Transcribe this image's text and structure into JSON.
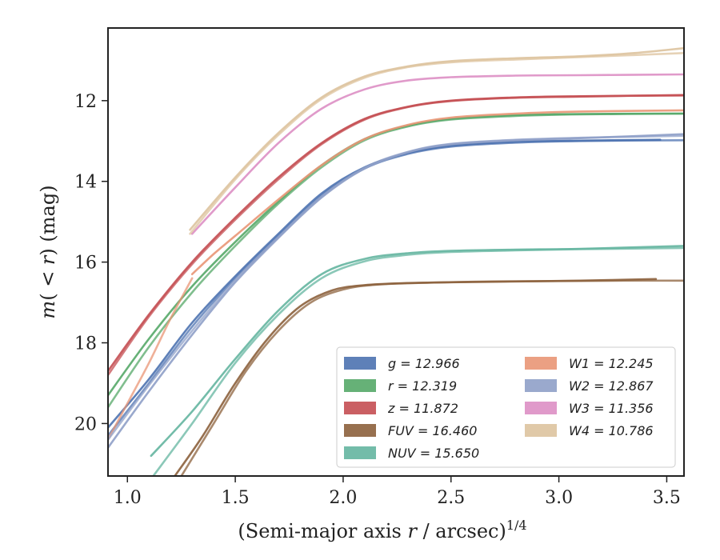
{
  "chart_data": {
    "type": "line",
    "xlabel_main": "(Semi-major axis ",
    "xlabel_var": "r",
    "xlabel_tail": " / arcsec)",
    "xlabel_sup": "1/4",
    "ylabel_pre": "m",
    "ylabel_mid": "( < ",
    "ylabel_var": "r",
    "ylabel_post": ") (mag)",
    "xlim": [
      0.91,
      3.58
    ],
    "ylim": [
      21.3,
      10.2
    ],
    "y_inverted": true,
    "x_ticks": [
      1.0,
      1.5,
      2.0,
      2.5,
      3.0,
      3.5
    ],
    "x_tick_labels": [
      "1.0",
      "1.5",
      "2.0",
      "2.5",
      "3.0",
      "3.5"
    ],
    "y_ticks": [
      12,
      14,
      16,
      18,
      20
    ],
    "y_tick_labels": [
      "12",
      "14",
      "16",
      "18",
      "20"
    ],
    "grid": false,
    "legend_position": "lower-right",
    "series": [
      {
        "band": "g",
        "value": "12.966",
        "color": "#4c72b0",
        "curves": [
          {
            "x": [
              0.91,
              1.1,
              1.3,
              1.5,
              1.7,
              1.9,
              2.1,
              2.3,
              2.5,
              2.8,
              3.1,
              3.47
            ],
            "y": [
              20.1,
              18.9,
              17.5,
              16.35,
              15.3,
              14.3,
              13.65,
              13.3,
              13.12,
              13.02,
              12.99,
              12.97
            ]
          },
          {
            "x": [
              0.91,
              1.1,
              1.3,
              1.5,
              1.7,
              1.9,
              2.1,
              2.3,
              2.5,
              2.8,
              3.1,
              3.58
            ],
            "y": [
              20.3,
              19.0,
              17.6,
              16.4,
              15.35,
              14.35,
              13.68,
              13.32,
              13.14,
              13.04,
              13.0,
              12.98
            ]
          }
        ]
      },
      {
        "band": "r",
        "value": "12.319",
        "color": "#55a868",
        "curves": [
          {
            "x": [
              0.91,
              1.1,
              1.3,
              1.5,
              1.7,
              1.9,
              2.1,
              2.3,
              2.5,
              2.8,
              3.1,
              3.58
            ],
            "y": [
              19.3,
              17.9,
              16.6,
              15.5,
              14.5,
              13.6,
              12.95,
              12.62,
              12.45,
              12.36,
              12.33,
              12.32
            ]
          },
          {
            "x": [
              0.91,
              1.1,
              1.3,
              1.5,
              1.7,
              1.9,
              2.1,
              2.3,
              2.5,
              2.8,
              3.1,
              3.58
            ],
            "y": [
              19.6,
              18.1,
              16.75,
              15.6,
              14.55,
              13.65,
              12.98,
              12.64,
              12.47,
              12.38,
              12.34,
              12.32
            ]
          }
        ]
      },
      {
        "band": "z",
        "value": "11.872",
        "color": "#c44e52",
        "curves": [
          {
            "x": [
              0.91,
              1.1,
              1.3,
              1.5,
              1.7,
              1.9,
              2.1,
              2.3,
              2.5,
              2.8,
              3.1,
              3.58
            ],
            "y": [
              18.7,
              17.3,
              16.0,
              14.9,
              13.9,
              13.05,
              12.45,
              12.15,
              12.0,
              11.92,
              11.89,
              11.87
            ]
          },
          {
            "x": [
              0.91,
              1.1,
              1.3,
              1.5,
              1.7,
              1.9,
              2.1,
              2.3,
              2.5,
              2.8,
              3.1,
              3.58
            ],
            "y": [
              18.8,
              17.35,
              16.05,
              14.95,
              13.95,
              13.08,
              12.47,
              12.16,
              12.01,
              11.93,
              11.9,
              11.86
            ]
          }
        ]
      },
      {
        "band": "FUV",
        "value": "16.460",
        "color": "#8c613c",
        "curves": [
          {
            "x": [
              1.22,
              1.35,
              1.5,
              1.65,
              1.8,
              1.95,
              2.1,
              2.3,
              2.5,
              2.8,
              3.1,
              3.45
            ],
            "y": [
              21.3,
              20.3,
              19.0,
              17.9,
              17.1,
              16.7,
              16.57,
              16.52,
              16.5,
              16.48,
              16.46,
              16.42
            ]
          },
          {
            "x": [
              1.25,
              1.4,
              1.55,
              1.7,
              1.85,
              2.0,
              2.15,
              2.4,
              2.7,
              3.0,
              3.3,
              3.58
            ],
            "y": [
              21.3,
              20.0,
              18.7,
              17.7,
              17.0,
              16.68,
              16.56,
              16.51,
              16.48,
              16.47,
              16.46,
              16.46
            ]
          }
        ]
      },
      {
        "band": "NUV",
        "value": "15.650",
        "color": "#64b5a0",
        "curves": [
          {
            "x": [
              1.11,
              1.3,
              1.5,
              1.7,
              1.9,
              2.1,
              2.3,
              2.5,
              2.8,
              3.1,
              3.58
            ],
            "y": [
              20.8,
              19.7,
              18.4,
              17.2,
              16.3,
              15.92,
              15.78,
              15.72,
              15.69,
              15.67,
              15.6
            ]
          },
          {
            "x": [
              1.12,
              1.3,
              1.5,
              1.7,
              1.9,
              2.1,
              2.3,
              2.5,
              2.8,
              3.1,
              3.58
            ],
            "y": [
              21.3,
              20.0,
              18.5,
              17.3,
              16.4,
              15.98,
              15.82,
              15.75,
              15.71,
              15.68,
              15.65
            ]
          }
        ]
      },
      {
        "band": "W1",
        "value": "12.245",
        "color": "#e99675",
        "curves": [
          {
            "x": [
              1.3,
              1.4,
              1.5,
              1.7,
              1.9,
              2.1,
              2.3,
              2.5,
              2.8,
              3.1,
              3.58
            ],
            "y": [
              16.3,
              15.8,
              15.35,
              14.45,
              13.6,
              12.95,
              12.6,
              12.42,
              12.32,
              12.27,
              12.24
            ]
          },
          {
            "x": [
              0.91,
              1.0,
              1.1,
              1.2,
              1.3
            ],
            "y": [
              20.4,
              19.5,
              18.5,
              17.4,
              16.4
            ]
          }
        ]
      },
      {
        "band": "W2",
        "value": "12.867",
        "color": "#8fa0c8",
        "curves": [
          {
            "x": [
              0.91,
              1.1,
              1.3,
              1.5,
              1.7,
              1.9,
              2.1,
              2.3,
              2.5,
              2.8,
              3.1,
              3.58
            ],
            "y": [
              20.6,
              19.2,
              17.8,
              16.5,
              15.4,
              14.4,
              13.68,
              13.28,
              13.08,
              12.98,
              12.93,
              12.83
            ]
          },
          {
            "x": [
              0.91,
              1.1,
              1.3,
              1.5,
              1.7,
              1.9,
              2.1,
              2.3,
              2.5,
              2.8,
              3.1,
              3.58
            ],
            "y": [
              20.4,
              19.05,
              17.7,
              16.45,
              15.38,
              14.38,
              13.66,
              13.27,
              13.07,
              12.97,
              12.92,
              12.87
            ]
          }
        ]
      },
      {
        "band": "W3",
        "value": "11.356",
        "color": "#dd8fc4",
        "curves": [
          {
            "x": [
              1.3,
              1.5,
              1.7,
              1.9,
              2.1,
              2.3,
              2.5,
              2.8,
              3.1,
              3.58
            ],
            "y": [
              15.3,
              14.15,
              13.05,
              12.2,
              11.72,
              11.5,
              11.42,
              11.38,
              11.37,
              11.35
            ]
          }
        ]
      },
      {
        "band": "W4",
        "value": "10.786",
        "color": "#ddc39e",
        "curves": [
          {
            "x": [
              1.29,
              1.5,
              1.7,
              1.9,
              2.1,
              2.3,
              2.5,
              2.8,
              3.1,
              3.35,
              3.58
            ],
            "y": [
              15.2,
              13.9,
              12.8,
              11.92,
              11.4,
              11.15,
              11.02,
              10.95,
              10.9,
              10.82,
              10.7
            ]
          },
          {
            "x": [
              1.29,
              1.5,
              1.7,
              1.9,
              2.1,
              2.3,
              2.5,
              2.8,
              3.1,
              3.35,
              3.58
            ],
            "y": [
              15.3,
              13.95,
              12.85,
              11.96,
              11.43,
              11.17,
              11.05,
              10.98,
              10.92,
              10.87,
              10.82
            ]
          }
        ]
      }
    ],
    "legend": [
      {
        "band": "g",
        "value": "12.966",
        "color": "#4c72b0"
      },
      {
        "band": "r",
        "value": "12.319",
        "color": "#55a868"
      },
      {
        "band": "z",
        "value": "11.872",
        "color": "#c44e52"
      },
      {
        "band": "FUV",
        "value": "16.460",
        "color": "#8c613c"
      },
      {
        "band": "NUV",
        "value": "15.650",
        "color": "#64b5a0"
      },
      {
        "band": "W1",
        "value": "12.245",
        "color": "#e99675"
      },
      {
        "band": "W2",
        "value": "12.867",
        "color": "#8fa0c8"
      },
      {
        "band": "W3",
        "value": "11.356",
        "color": "#dd8fc4"
      },
      {
        "band": "W4",
        "value": "10.786",
        "color": "#ddc39e"
      }
    ]
  }
}
